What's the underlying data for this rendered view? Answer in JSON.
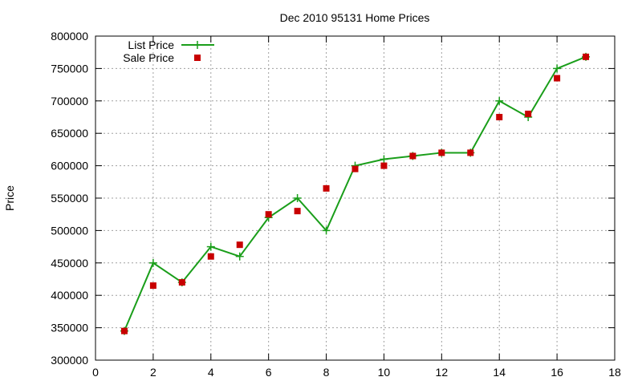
{
  "chart_data": {
    "type": "line",
    "title": "Dec 2010 95131 Home Prices",
    "xlabel": "",
    "ylabel": "Price",
    "xlim": [
      0,
      18
    ],
    "ylim": [
      300000,
      800000
    ],
    "x_ticks": [
      0,
      2,
      4,
      6,
      8,
      10,
      12,
      14,
      16,
      18
    ],
    "y_ticks": [
      300000,
      350000,
      400000,
      450000,
      500000,
      550000,
      600000,
      650000,
      700000,
      750000,
      800000
    ],
    "x_tick_labels": [
      "0",
      "2",
      "4",
      "6",
      "8",
      "10",
      "12",
      "14",
      "16",
      "18"
    ],
    "y_tick_labels": [
      "300000",
      "350000",
      "400000",
      "450000",
      "500000",
      "550000",
      "600000",
      "650000",
      "700000",
      "750000",
      "800000"
    ],
    "grid": true,
    "legend_position": "top-left",
    "series": [
      {
        "name": "List Price",
        "style": "line+cross",
        "color": "#1a9e1a",
        "x": [
          1,
          2,
          3,
          4,
          5,
          6,
          7,
          8,
          9,
          10,
          11,
          12,
          13,
          14,
          15,
          16,
          17
        ],
        "values": [
          345000,
          450000,
          420000,
          475000,
          460000,
          520000,
          550000,
          500000,
          600000,
          610000,
          615000,
          620000,
          620000,
          700000,
          675000,
          750000,
          768000
        ]
      },
      {
        "name": "Sale Price",
        "style": "square",
        "color": "#c80000",
        "x": [
          1,
          2,
          3,
          4,
          5,
          6,
          7,
          8,
          9,
          10,
          11,
          12,
          13,
          14,
          15,
          16,
          17
        ],
        "values": [
          345000,
          415000,
          420000,
          460000,
          478000,
          525000,
          530000,
          565000,
          595000,
          600000,
          615000,
          620000,
          620000,
          675000,
          680000,
          735000,
          768000
        ]
      }
    ]
  }
}
